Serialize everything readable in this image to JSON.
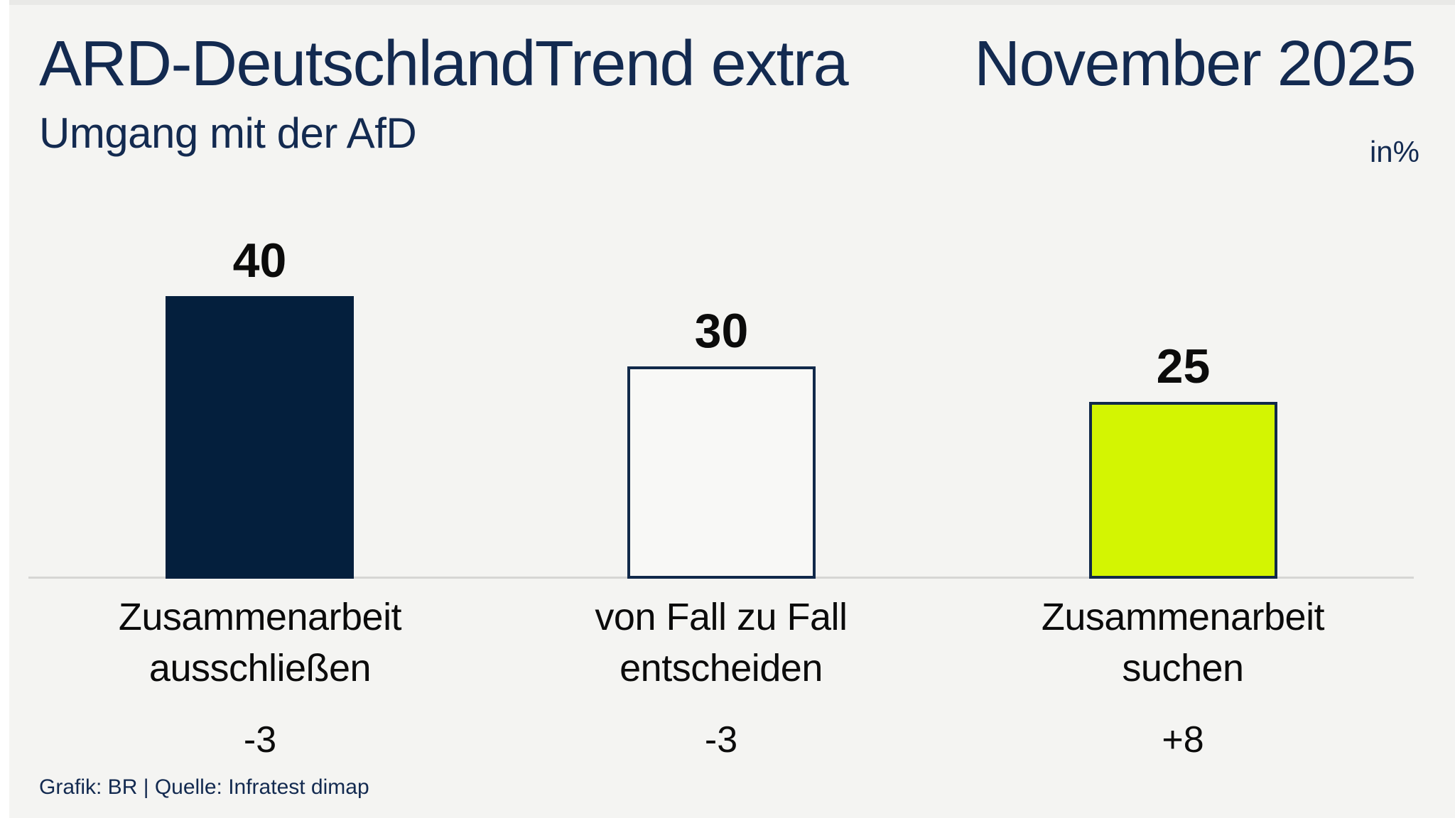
{
  "header": {
    "title": "ARD-DeutschlandTrend extra",
    "date": "November 2025",
    "subtitle": "Umgang mit der AfD",
    "unit": "in%"
  },
  "footer": {
    "credit": "Grafik: BR | Quelle: Infratest dimap"
  },
  "colors": {
    "text_navy": "#132a50",
    "bar_navy_fill": "#041f3d",
    "bar_outline_navy": "#11294a",
    "bar_white_fill": "#f8f8f6",
    "bar_green_fill": "#d3f502",
    "baseline_gray": "#d6d6d4",
    "background": "#f4f4f2",
    "label_black": "#0b0b0b"
  },
  "chart_data": {
    "type": "bar",
    "title": "Umgang mit der AfD",
    "subtitle_context": "ARD-DeutschlandTrend extra, November 2025",
    "unit": "in%",
    "categories": [
      "Zusammenarbeit\nausschließen",
      "von Fall zu Fall\nentscheiden",
      "Zusammenarbeit\nsuchen"
    ],
    "values": [
      40,
      30,
      25
    ],
    "changes": [
      "-3",
      "-3",
      "+8"
    ],
    "ylim": [
      0,
      45
    ],
    "grid": false,
    "legend": false,
    "bar_fills": [
      "#041f3d",
      "#f8f8f6",
      "#d3f502"
    ],
    "bar_borders": [
      "none",
      "#11294a",
      "#11294a"
    ],
    "source": "Grafik: BR | Quelle: Infratest dimap"
  }
}
